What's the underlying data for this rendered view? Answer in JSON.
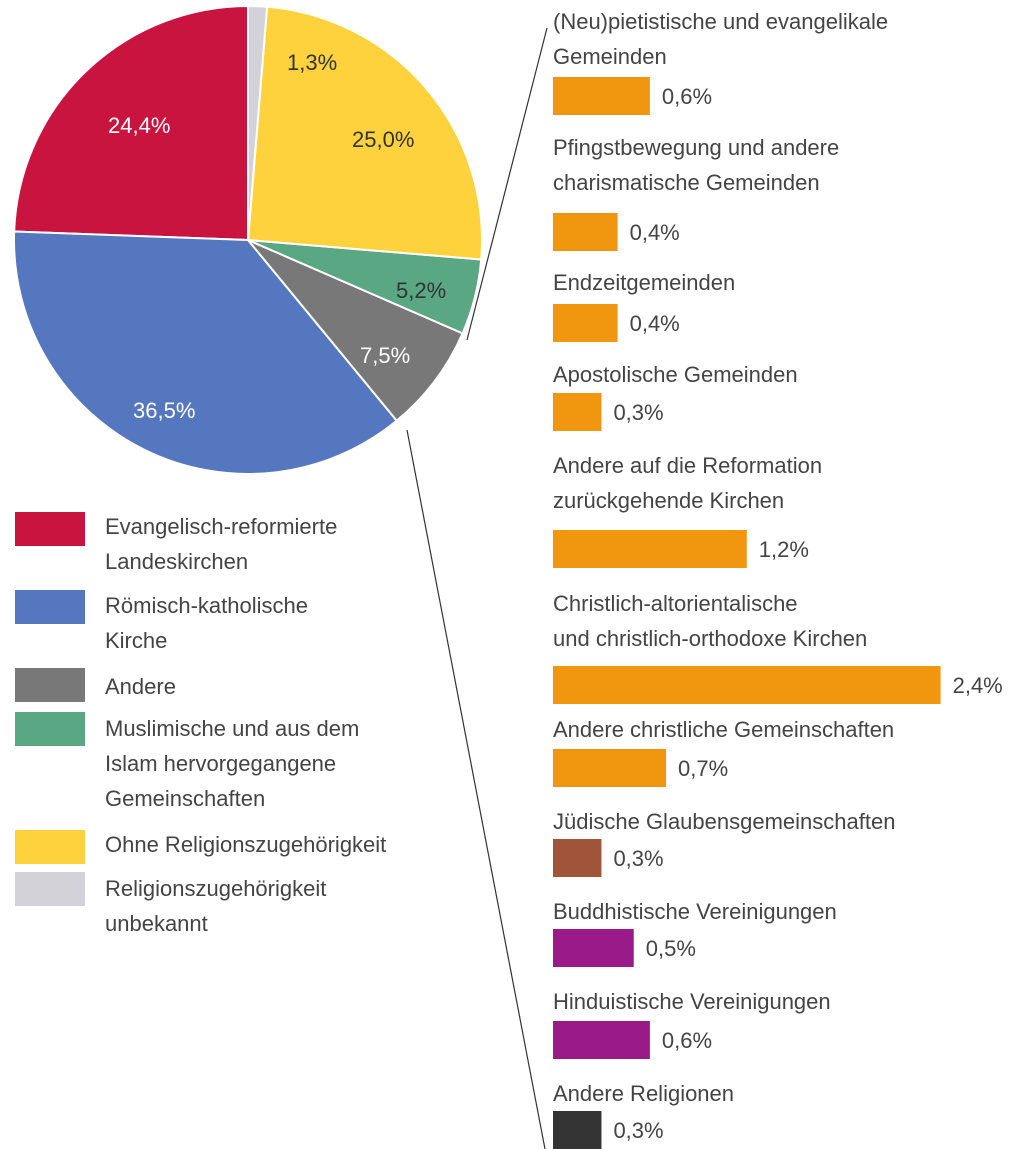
{
  "chart_data": [
    {
      "type": "pie",
      "categories": [
        "Evangelisch-reformierte\nLandeskirchen",
        "Römisch-katholische\nKirche",
        "Andere",
        "Muslimische und aus dem\nIslam hervorgegangene\nGemeinschaften",
        "Ohne Religionszugehörigkeit",
        "Religionszugehörigkeit\nunbekannt"
      ],
      "values": [
        24.4,
        36.5,
        7.5,
        5.2,
        25.0,
        1.3
      ],
      "value_labels": [
        "24,4%",
        "36,5%",
        "7,5%",
        "5,2%",
        "25,0%",
        "1,3%"
      ],
      "colors": [
        "#c8143f",
        "#5577bf",
        "#787878",
        "#5aa783",
        "#fdd23c",
        "#d2d2d8"
      ]
    },
    {
      "type": "bar",
      "categories": [
        "(Neu)pietistische und evangelikale\nGemeinden",
        "Pfingstbewegung und andere\ncharismatische Gemeinden",
        "Endzeitgemeinden",
        "Apostolische Gemeinden",
        "Andere auf die Reformation\nzurückgehende Kirchen",
        "Christlich-altorientalische\nund christlich-orthodoxe Kirchen",
        "Andere christliche Gemeinschaften",
        "Jüdische Glaubensgemeinschaften",
        "Buddhistische Vereinigungen",
        "Hinduistische Vereinigungen",
        "Andere Religionen"
      ],
      "values": [
        0.6,
        0.4,
        0.4,
        0.3,
        1.2,
        2.4,
        0.7,
        0.3,
        0.5,
        0.6,
        0.3
      ],
      "value_labels": [
        "0,6%",
        "0,4%",
        "0,4%",
        "0,3%",
        "1,2%",
        "2,4%",
        "0,7%",
        "0,3%",
        "0,5%",
        "0,6%",
        "0,3%"
      ],
      "colors": [
        "#f0960f",
        "#f0960f",
        "#f0960f",
        "#f0960f",
        "#f0960f",
        "#f0960f",
        "#f0960f",
        "#a0553a",
        "#9b1a8a",
        "#9b1a8a",
        "#333333"
      ]
    }
  ]
}
